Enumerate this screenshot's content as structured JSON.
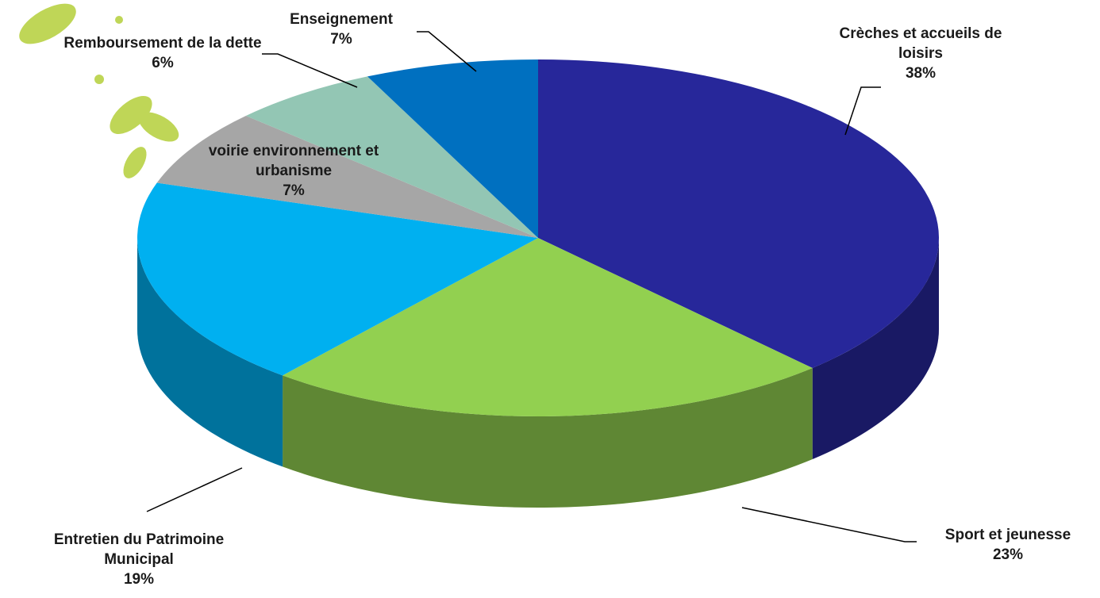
{
  "chart_data": {
    "type": "pie",
    "categories": [
      "Crèches et accueils de loisirs",
      "Sport et jeunesse",
      "Entretien du Patrimoine Municipal",
      "voirie environnement et urbanisme",
      "Remboursement de la dette",
      "Enseignement"
    ],
    "values": [
      38,
      23,
      19,
      7,
      6,
      7
    ],
    "value_labels": [
      "38%",
      "23%",
      "19%",
      "7%",
      "6%",
      "7%"
    ],
    "colors": [
      "#27279a",
      "#92d050",
      "#00b0f0",
      "#a6a6a6",
      "#93c6b4",
      "#0070c0"
    ]
  }
}
